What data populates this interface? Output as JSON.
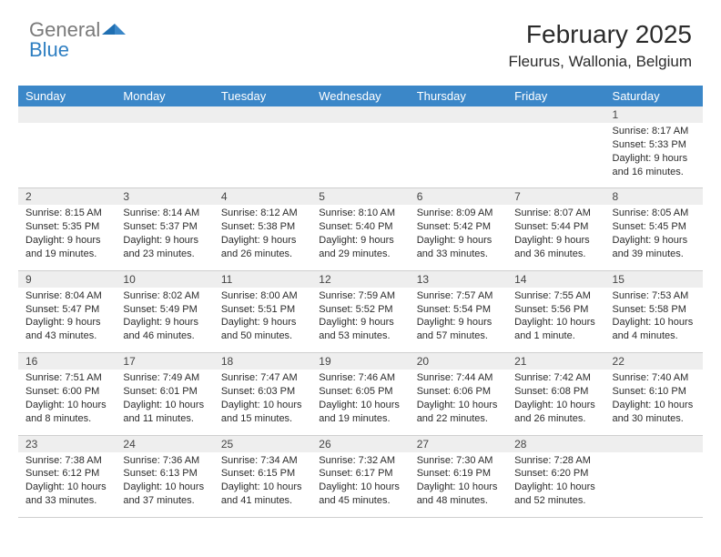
{
  "brand": {
    "part1": "General",
    "part2": "Blue"
  },
  "colors": {
    "header_bg": "#3b87c8",
    "header_text": "#ffffff",
    "daynum_bg": "#eeeeee",
    "border": "#cfcfcf",
    "logo_gray": "#7a7a7a",
    "logo_blue": "#2f7fc2",
    "text": "#2b2b2b"
  },
  "title": "February 2025",
  "location": "Fleurus, Wallonia, Belgium",
  "weekdays": [
    "Sunday",
    "Monday",
    "Tuesday",
    "Wednesday",
    "Thursday",
    "Friday",
    "Saturday"
  ],
  "weeks": [
    {
      "nums": [
        "",
        "",
        "",
        "",
        "",
        "",
        "1"
      ],
      "cells": [
        [],
        [],
        [],
        [],
        [],
        [],
        [
          "Sunrise: 8:17 AM",
          "Sunset: 5:33 PM",
          "Daylight: 9 hours",
          "and 16 minutes."
        ]
      ]
    },
    {
      "nums": [
        "2",
        "3",
        "4",
        "5",
        "6",
        "7",
        "8"
      ],
      "cells": [
        [
          "Sunrise: 8:15 AM",
          "Sunset: 5:35 PM",
          "Daylight: 9 hours",
          "and 19 minutes."
        ],
        [
          "Sunrise: 8:14 AM",
          "Sunset: 5:37 PM",
          "Daylight: 9 hours",
          "and 23 minutes."
        ],
        [
          "Sunrise: 8:12 AM",
          "Sunset: 5:38 PM",
          "Daylight: 9 hours",
          "and 26 minutes."
        ],
        [
          "Sunrise: 8:10 AM",
          "Sunset: 5:40 PM",
          "Daylight: 9 hours",
          "and 29 minutes."
        ],
        [
          "Sunrise: 8:09 AM",
          "Sunset: 5:42 PM",
          "Daylight: 9 hours",
          "and 33 minutes."
        ],
        [
          "Sunrise: 8:07 AM",
          "Sunset: 5:44 PM",
          "Daylight: 9 hours",
          "and 36 minutes."
        ],
        [
          "Sunrise: 8:05 AM",
          "Sunset: 5:45 PM",
          "Daylight: 9 hours",
          "and 39 minutes."
        ]
      ]
    },
    {
      "nums": [
        "9",
        "10",
        "11",
        "12",
        "13",
        "14",
        "15"
      ],
      "cells": [
        [
          "Sunrise: 8:04 AM",
          "Sunset: 5:47 PM",
          "Daylight: 9 hours",
          "and 43 minutes."
        ],
        [
          "Sunrise: 8:02 AM",
          "Sunset: 5:49 PM",
          "Daylight: 9 hours",
          "and 46 minutes."
        ],
        [
          "Sunrise: 8:00 AM",
          "Sunset: 5:51 PM",
          "Daylight: 9 hours",
          "and 50 minutes."
        ],
        [
          "Sunrise: 7:59 AM",
          "Sunset: 5:52 PM",
          "Daylight: 9 hours",
          "and 53 minutes."
        ],
        [
          "Sunrise: 7:57 AM",
          "Sunset: 5:54 PM",
          "Daylight: 9 hours",
          "and 57 minutes."
        ],
        [
          "Sunrise: 7:55 AM",
          "Sunset: 5:56 PM",
          "Daylight: 10 hours",
          "and 1 minute."
        ],
        [
          "Sunrise: 7:53 AM",
          "Sunset: 5:58 PM",
          "Daylight: 10 hours",
          "and 4 minutes."
        ]
      ]
    },
    {
      "nums": [
        "16",
        "17",
        "18",
        "19",
        "20",
        "21",
        "22"
      ],
      "cells": [
        [
          "Sunrise: 7:51 AM",
          "Sunset: 6:00 PM",
          "Daylight: 10 hours",
          "and 8 minutes."
        ],
        [
          "Sunrise: 7:49 AM",
          "Sunset: 6:01 PM",
          "Daylight: 10 hours",
          "and 11 minutes."
        ],
        [
          "Sunrise: 7:47 AM",
          "Sunset: 6:03 PM",
          "Daylight: 10 hours",
          "and 15 minutes."
        ],
        [
          "Sunrise: 7:46 AM",
          "Sunset: 6:05 PM",
          "Daylight: 10 hours",
          "and 19 minutes."
        ],
        [
          "Sunrise: 7:44 AM",
          "Sunset: 6:06 PM",
          "Daylight: 10 hours",
          "and 22 minutes."
        ],
        [
          "Sunrise: 7:42 AM",
          "Sunset: 6:08 PM",
          "Daylight: 10 hours",
          "and 26 minutes."
        ],
        [
          "Sunrise: 7:40 AM",
          "Sunset: 6:10 PM",
          "Daylight: 10 hours",
          "and 30 minutes."
        ]
      ]
    },
    {
      "nums": [
        "23",
        "24",
        "25",
        "26",
        "27",
        "28",
        ""
      ],
      "cells": [
        [
          "Sunrise: 7:38 AM",
          "Sunset: 6:12 PM",
          "Daylight: 10 hours",
          "and 33 minutes."
        ],
        [
          "Sunrise: 7:36 AM",
          "Sunset: 6:13 PM",
          "Daylight: 10 hours",
          "and 37 minutes."
        ],
        [
          "Sunrise: 7:34 AM",
          "Sunset: 6:15 PM",
          "Daylight: 10 hours",
          "and 41 minutes."
        ],
        [
          "Sunrise: 7:32 AM",
          "Sunset: 6:17 PM",
          "Daylight: 10 hours",
          "and 45 minutes."
        ],
        [
          "Sunrise: 7:30 AM",
          "Sunset: 6:19 PM",
          "Daylight: 10 hours",
          "and 48 minutes."
        ],
        [
          "Sunrise: 7:28 AM",
          "Sunset: 6:20 PM",
          "Daylight: 10 hours",
          "and 52 minutes."
        ],
        []
      ]
    }
  ]
}
